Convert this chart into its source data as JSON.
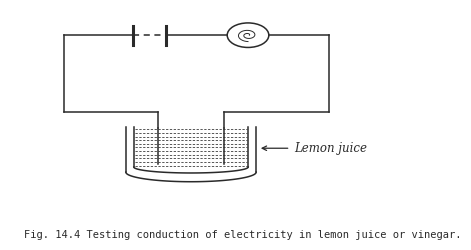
{
  "background_color": "#ffffff",
  "line_color": "#2a2a2a",
  "caption": "Fig. 14.4 Testing conduction of electricity in lemon juice or vinegar.",
  "caption_fontsize": 7.5,
  "lemon_juice_label": "Lemon juice",
  "label_fontsize": 8.5,
  "fig_width": 3.62,
  "fig_height": 2.37,
  "xlim": [
    0,
    10
  ],
  "ylim": [
    0,
    10
  ]
}
